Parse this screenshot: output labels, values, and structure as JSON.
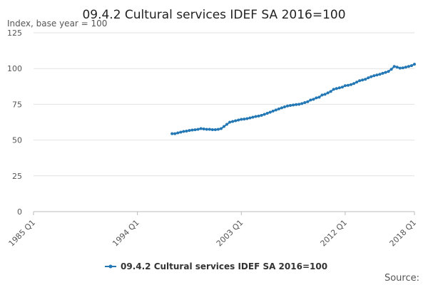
{
  "chart_data": {
    "type": "line",
    "title": "09.4.2 Cultural services IDEF SA 2016=100",
    "y_label": "Index, base year = 100",
    "source": "Source:",
    "categories": [
      "1985 Q1",
      null,
      null,
      null,
      null,
      null,
      null,
      null,
      null,
      null,
      null,
      null,
      null,
      null,
      null,
      null,
      null,
      null,
      null,
      null,
      null,
      null,
      null,
      null,
      null,
      null,
      null,
      null,
      null,
      null,
      null,
      null,
      null,
      null,
      null,
      null,
      "1994 Q1",
      null,
      null,
      null,
      null,
      null,
      null,
      null,
      null,
      null,
      null,
      null,
      null,
      null,
      null,
      null,
      null,
      null,
      null,
      null,
      null,
      null,
      null,
      null,
      null,
      null,
      null,
      null,
      null,
      null,
      null,
      null,
      null,
      null,
      null,
      null,
      "2003 Q1",
      null,
      null,
      null,
      null,
      null,
      null,
      null,
      null,
      null,
      null,
      null,
      null,
      null,
      null,
      null,
      null,
      null,
      null,
      null,
      null,
      null,
      null,
      null,
      null,
      null,
      null,
      null,
      null,
      null,
      null,
      null,
      null,
      null,
      null,
      null,
      "2012 Q1",
      null,
      null,
      null,
      null,
      null,
      null,
      null,
      null,
      null,
      null,
      null,
      null,
      null,
      null,
      null,
      null,
      null,
      null,
      null,
      null,
      null,
      null,
      null,
      "2018 Q1"
    ],
    "series": [
      {
        "name": "09.4.2 Cultural services IDEF SA 2016=100",
        "color": "#2277b4",
        "values": [
          null,
          null,
          null,
          null,
          null,
          null,
          null,
          null,
          null,
          null,
          null,
          null,
          null,
          null,
          null,
          null,
          null,
          null,
          null,
          null,
          null,
          null,
          null,
          null,
          null,
          null,
          null,
          null,
          null,
          null,
          null,
          null,
          null,
          null,
          null,
          null,
          null,
          null,
          null,
          null,
          null,
          null,
          null,
          null,
          null,
          null,
          null,
          null,
          54.5,
          54.5,
          55,
          55.5,
          56,
          56.3,
          56.7,
          57,
          57.2,
          57.5,
          58,
          57.8,
          57.5,
          57.5,
          57.3,
          57.3,
          57.5,
          58,
          59.5,
          61,
          62.5,
          63,
          63.5,
          64,
          64.5,
          64.7,
          65,
          65.5,
          66,
          66.5,
          66.8,
          67.3,
          68,
          68.7,
          69.5,
          70.3,
          71,
          71.8,
          72.5,
          73.2,
          73.8,
          74.2,
          74.5,
          74.8,
          75,
          75.5,
          76.2,
          76.8,
          78,
          78.5,
          79.5,
          80,
          81.5,
          82,
          83,
          84,
          85.5,
          86,
          86.5,
          87,
          88,
          88.3,
          88.8,
          89.5,
          90.5,
          91.5,
          92,
          92.5,
          93.5,
          94.3,
          95,
          95.5,
          96,
          96.7,
          97.3,
          98,
          99.5,
          101.5,
          101,
          100.3,
          100.5,
          101,
          101.5,
          102,
          103
        ]
      }
    ],
    "ylim": [
      0,
      125
    ],
    "yticks": [
      0,
      25,
      50,
      75,
      100,
      125
    ],
    "grid": true
  }
}
